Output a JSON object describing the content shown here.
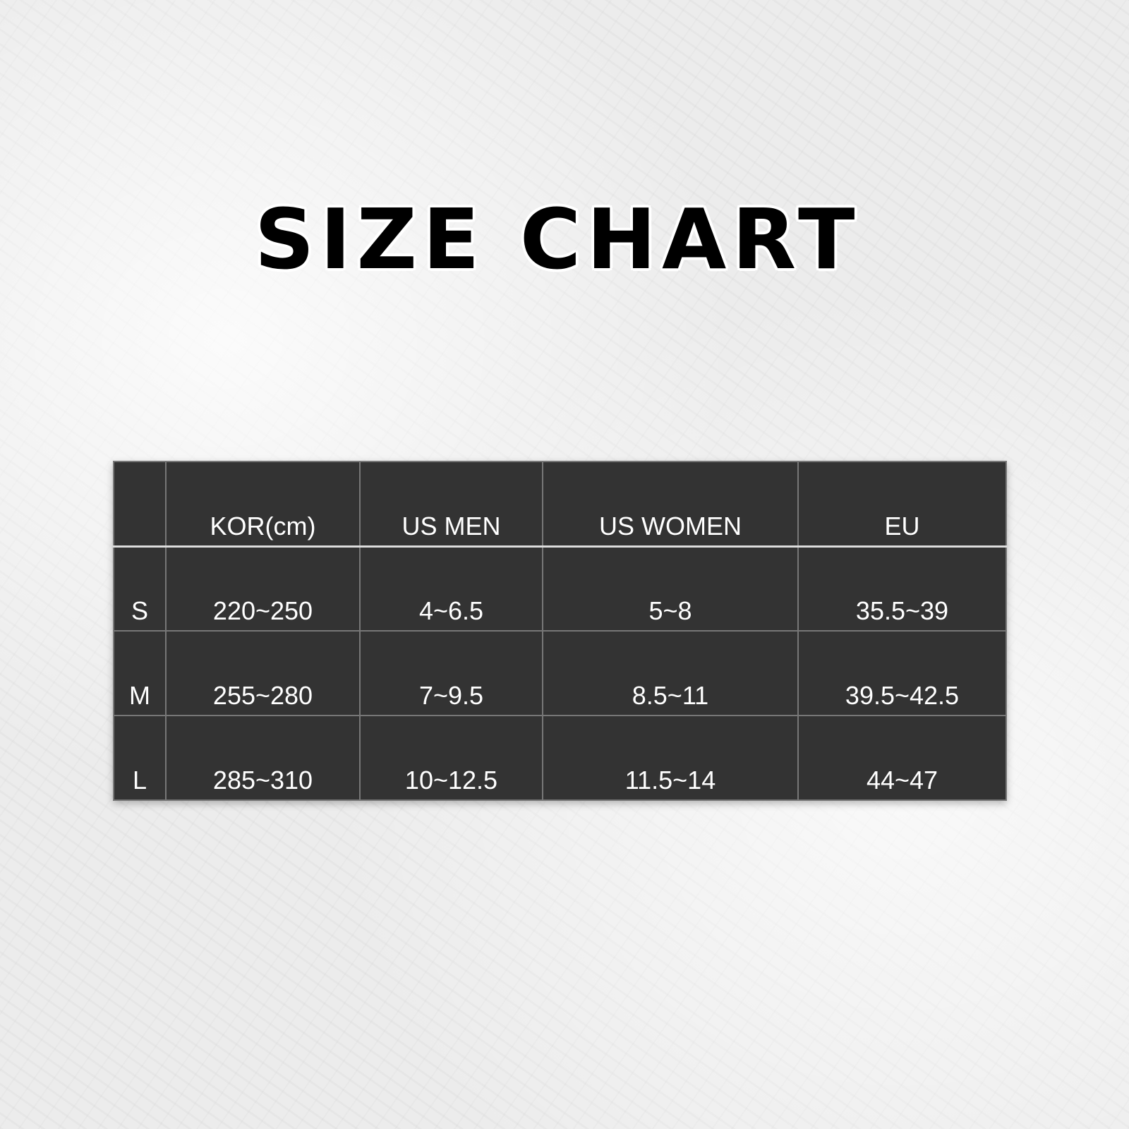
{
  "title": "SIZE CHART",
  "table": {
    "headers": [
      "",
      "KOR(cm)",
      "US MEN",
      "US WOMEN",
      "EU"
    ],
    "rows": [
      [
        "S",
        "220~250",
        "4~6.5",
        "5~8",
        "35.5~39"
      ],
      [
        "M",
        "255~280",
        "7~9.5",
        "8.5~11",
        "39.5~42.5"
      ],
      [
        "L",
        "285~310",
        "10~12.5",
        "11.5~14",
        "44~47"
      ]
    ]
  },
  "colors": {
    "table_bg": "#333333",
    "text": "#ffffff",
    "title": "#000000"
  }
}
